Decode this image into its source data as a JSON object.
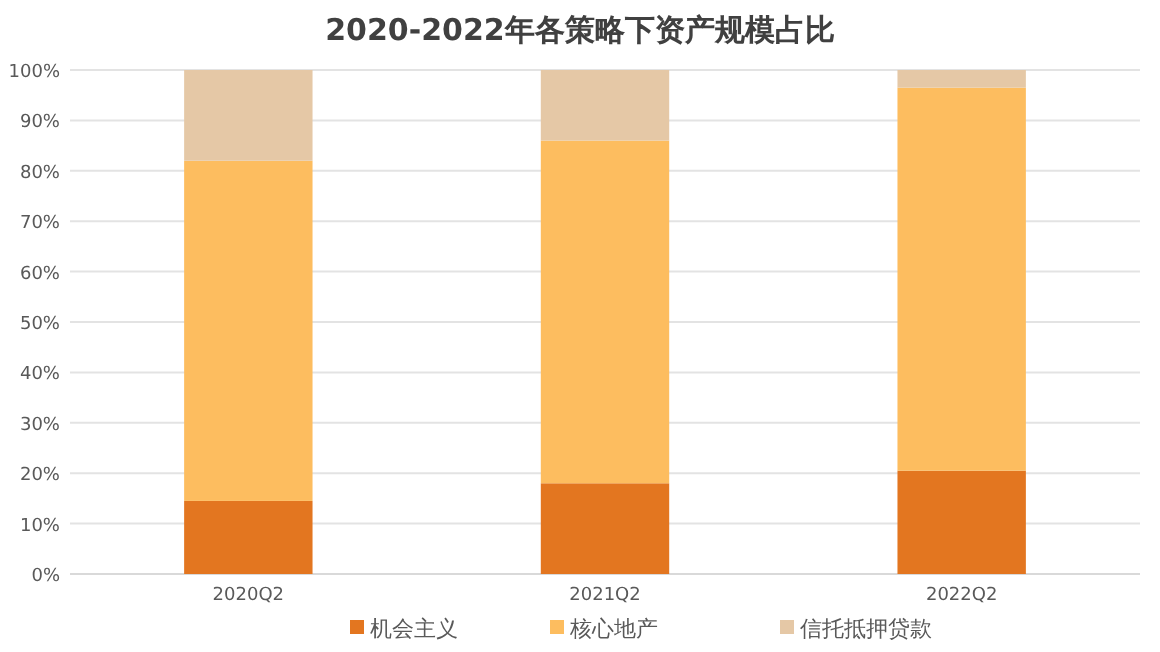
{
  "chart_data": {
    "type": "bar",
    "stacked": true,
    "title": "2020-2022年各策略下资产规模占比",
    "categories": [
      "2020Q2",
      "2021Q2",
      "2022Q2"
    ],
    "series": [
      {
        "name": "机会主义",
        "color": "#e37620",
        "values": [
          14.5,
          18,
          20.5
        ]
      },
      {
        "name": "核心地产",
        "color": "#fdbd5f",
        "values": [
          67.5,
          68,
          76
        ]
      },
      {
        "name": "信托抵押贷款",
        "color": "#e5c8a6",
        "values": [
          18,
          14,
          3.5
        ]
      }
    ],
    "ylim": [
      0,
      100
    ],
    "yticks": [
      {
        "value": 0,
        "label": "0%"
      },
      {
        "value": 10,
        "label": "10%"
      },
      {
        "value": 20,
        "label": "20%"
      },
      {
        "value": 30,
        "label": "30%"
      },
      {
        "value": 40,
        "label": "40%"
      },
      {
        "value": 50,
        "label": "50%"
      },
      {
        "value": 60,
        "label": "60%"
      },
      {
        "value": 70,
        "label": "70%"
      },
      {
        "value": 80,
        "label": "80%"
      },
      {
        "value": 90,
        "label": "90%"
      },
      {
        "value": 100,
        "label": "100%"
      }
    ],
    "grid": "y",
    "legend": "bottom"
  }
}
